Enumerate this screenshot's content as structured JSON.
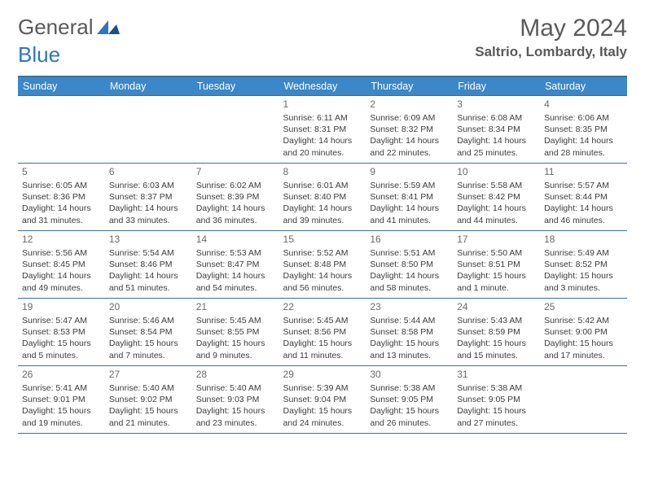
{
  "logo": {
    "word1": "General",
    "word2": "Blue"
  },
  "title": {
    "month": "May 2024",
    "location": "Saltrio, Lombardy, Italy"
  },
  "colors": {
    "header_bg": "#3b87c8",
    "header_text": "#ffffff",
    "border": "#3a6fa3",
    "logo_gray": "#595959",
    "logo_blue": "#2f76bb",
    "title_text": "#5a5a5a",
    "daynum": "#6a6a6a",
    "detail": "#3c3c3c",
    "bg": "#ffffff"
  },
  "day_headers": [
    "Sunday",
    "Monday",
    "Tuesday",
    "Wednesday",
    "Thursday",
    "Friday",
    "Saturday"
  ],
  "weeks": [
    [
      {},
      {},
      {},
      {
        "day": "1",
        "sunrise": "Sunrise: 6:11 AM",
        "sunset": "Sunset: 8:31 PM",
        "dl1": "Daylight: 14 hours",
        "dl2": "and 20 minutes."
      },
      {
        "day": "2",
        "sunrise": "Sunrise: 6:09 AM",
        "sunset": "Sunset: 8:32 PM",
        "dl1": "Daylight: 14 hours",
        "dl2": "and 22 minutes."
      },
      {
        "day": "3",
        "sunrise": "Sunrise: 6:08 AM",
        "sunset": "Sunset: 8:34 PM",
        "dl1": "Daylight: 14 hours",
        "dl2": "and 25 minutes."
      },
      {
        "day": "4",
        "sunrise": "Sunrise: 6:06 AM",
        "sunset": "Sunset: 8:35 PM",
        "dl1": "Daylight: 14 hours",
        "dl2": "and 28 minutes."
      }
    ],
    [
      {
        "day": "5",
        "sunrise": "Sunrise: 6:05 AM",
        "sunset": "Sunset: 8:36 PM",
        "dl1": "Daylight: 14 hours",
        "dl2": "and 31 minutes."
      },
      {
        "day": "6",
        "sunrise": "Sunrise: 6:03 AM",
        "sunset": "Sunset: 8:37 PM",
        "dl1": "Daylight: 14 hours",
        "dl2": "and 33 minutes."
      },
      {
        "day": "7",
        "sunrise": "Sunrise: 6:02 AM",
        "sunset": "Sunset: 8:39 PM",
        "dl1": "Daylight: 14 hours",
        "dl2": "and 36 minutes."
      },
      {
        "day": "8",
        "sunrise": "Sunrise: 6:01 AM",
        "sunset": "Sunset: 8:40 PM",
        "dl1": "Daylight: 14 hours",
        "dl2": "and 39 minutes."
      },
      {
        "day": "9",
        "sunrise": "Sunrise: 5:59 AM",
        "sunset": "Sunset: 8:41 PM",
        "dl1": "Daylight: 14 hours",
        "dl2": "and 41 minutes."
      },
      {
        "day": "10",
        "sunrise": "Sunrise: 5:58 AM",
        "sunset": "Sunset: 8:42 PM",
        "dl1": "Daylight: 14 hours",
        "dl2": "and 44 minutes."
      },
      {
        "day": "11",
        "sunrise": "Sunrise: 5:57 AM",
        "sunset": "Sunset: 8:44 PM",
        "dl1": "Daylight: 14 hours",
        "dl2": "and 46 minutes."
      }
    ],
    [
      {
        "day": "12",
        "sunrise": "Sunrise: 5:56 AM",
        "sunset": "Sunset: 8:45 PM",
        "dl1": "Daylight: 14 hours",
        "dl2": "and 49 minutes."
      },
      {
        "day": "13",
        "sunrise": "Sunrise: 5:54 AM",
        "sunset": "Sunset: 8:46 PM",
        "dl1": "Daylight: 14 hours",
        "dl2": "and 51 minutes."
      },
      {
        "day": "14",
        "sunrise": "Sunrise: 5:53 AM",
        "sunset": "Sunset: 8:47 PM",
        "dl1": "Daylight: 14 hours",
        "dl2": "and 54 minutes."
      },
      {
        "day": "15",
        "sunrise": "Sunrise: 5:52 AM",
        "sunset": "Sunset: 8:48 PM",
        "dl1": "Daylight: 14 hours",
        "dl2": "and 56 minutes."
      },
      {
        "day": "16",
        "sunrise": "Sunrise: 5:51 AM",
        "sunset": "Sunset: 8:50 PM",
        "dl1": "Daylight: 14 hours",
        "dl2": "and 58 minutes."
      },
      {
        "day": "17",
        "sunrise": "Sunrise: 5:50 AM",
        "sunset": "Sunset: 8:51 PM",
        "dl1": "Daylight: 15 hours",
        "dl2": "and 1 minute."
      },
      {
        "day": "18",
        "sunrise": "Sunrise: 5:49 AM",
        "sunset": "Sunset: 8:52 PM",
        "dl1": "Daylight: 15 hours",
        "dl2": "and 3 minutes."
      }
    ],
    [
      {
        "day": "19",
        "sunrise": "Sunrise: 5:47 AM",
        "sunset": "Sunset: 8:53 PM",
        "dl1": "Daylight: 15 hours",
        "dl2": "and 5 minutes."
      },
      {
        "day": "20",
        "sunrise": "Sunrise: 5:46 AM",
        "sunset": "Sunset: 8:54 PM",
        "dl1": "Daylight: 15 hours",
        "dl2": "and 7 minutes."
      },
      {
        "day": "21",
        "sunrise": "Sunrise: 5:45 AM",
        "sunset": "Sunset: 8:55 PM",
        "dl1": "Daylight: 15 hours",
        "dl2": "and 9 minutes."
      },
      {
        "day": "22",
        "sunrise": "Sunrise: 5:45 AM",
        "sunset": "Sunset: 8:56 PM",
        "dl1": "Daylight: 15 hours",
        "dl2": "and 11 minutes."
      },
      {
        "day": "23",
        "sunrise": "Sunrise: 5:44 AM",
        "sunset": "Sunset: 8:58 PM",
        "dl1": "Daylight: 15 hours",
        "dl2": "and 13 minutes."
      },
      {
        "day": "24",
        "sunrise": "Sunrise: 5:43 AM",
        "sunset": "Sunset: 8:59 PM",
        "dl1": "Daylight: 15 hours",
        "dl2": "and 15 minutes."
      },
      {
        "day": "25",
        "sunrise": "Sunrise: 5:42 AM",
        "sunset": "Sunset: 9:00 PM",
        "dl1": "Daylight: 15 hours",
        "dl2": "and 17 minutes."
      }
    ],
    [
      {
        "day": "26",
        "sunrise": "Sunrise: 5:41 AM",
        "sunset": "Sunset: 9:01 PM",
        "dl1": "Daylight: 15 hours",
        "dl2": "and 19 minutes."
      },
      {
        "day": "27",
        "sunrise": "Sunrise: 5:40 AM",
        "sunset": "Sunset: 9:02 PM",
        "dl1": "Daylight: 15 hours",
        "dl2": "and 21 minutes."
      },
      {
        "day": "28",
        "sunrise": "Sunrise: 5:40 AM",
        "sunset": "Sunset: 9:03 PM",
        "dl1": "Daylight: 15 hours",
        "dl2": "and 23 minutes."
      },
      {
        "day": "29",
        "sunrise": "Sunrise: 5:39 AM",
        "sunset": "Sunset: 9:04 PM",
        "dl1": "Daylight: 15 hours",
        "dl2": "and 24 minutes."
      },
      {
        "day": "30",
        "sunrise": "Sunrise: 5:38 AM",
        "sunset": "Sunset: 9:05 PM",
        "dl1": "Daylight: 15 hours",
        "dl2": "and 26 minutes."
      },
      {
        "day": "31",
        "sunrise": "Sunrise: 5:38 AM",
        "sunset": "Sunset: 9:05 PM",
        "dl1": "Daylight: 15 hours",
        "dl2": "and 27 minutes."
      },
      {}
    ]
  ]
}
